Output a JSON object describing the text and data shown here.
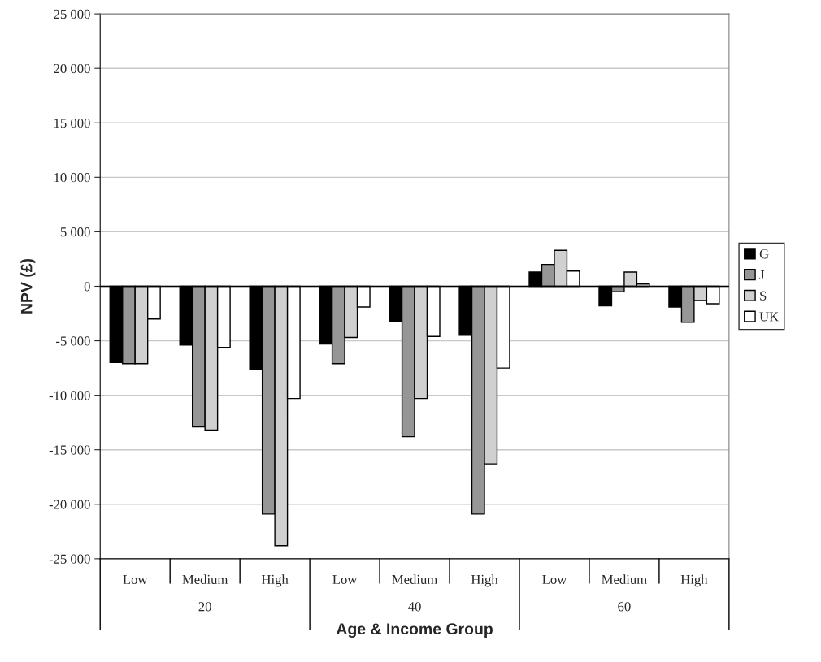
{
  "chart_data": {
    "type": "bar",
    "xlabel": "Age & Income Group",
    "ylabel": "NPV (£)",
    "categories": [
      "Low",
      "Medium",
      "High",
      "Low",
      "Medium",
      "High",
      "Low",
      "Medium",
      "High"
    ],
    "annotations": [
      "20",
      "40",
      "60"
    ],
    "series": [
      {
        "name": "G",
        "color": "#000000",
        "values": [
          -7000,
          -5400,
          -7600,
          -5300,
          -3200,
          -4500,
          1300,
          -1800,
          -1900
        ]
      },
      {
        "name": "J",
        "color": "#969696",
        "values": [
          -7100,
          -12900,
          -20900,
          -7100,
          -13800,
          -20900,
          2000,
          -500,
          -3300
        ]
      },
      {
        "name": "S",
        "color": "#d0d0d0",
        "values": [
          -7100,
          -13200,
          -23800,
          -4700,
          -10300,
          -16300,
          3300,
          1300,
          -1300
        ]
      },
      {
        "name": "UK",
        "color": "#ffffff",
        "values": [
          -3000,
          -5600,
          -10300,
          -1900,
          -4600,
          -7500,
          1400,
          200,
          -1600
        ]
      }
    ],
    "ylim": [
      -25000,
      25000
    ],
    "yticks": [
      {
        "value": -25000,
        "label": "-25 000"
      },
      {
        "value": -20000,
        "label": "-20 000"
      },
      {
        "value": -15000,
        "label": "-15 000"
      },
      {
        "value": -10000,
        "label": "-10 000"
      },
      {
        "value": -5000,
        "label": "-5 000"
      },
      0,
      {
        "value": 5000,
        "label": "5 000"
      },
      {
        "value": 10000,
        "label": "10 000"
      },
      {
        "value": 15000,
        "label": "15 000"
      },
      {
        "value": 20000,
        "label": "20 000"
      },
      {
        "value": 25000,
        "label": "25 000"
      }
    ],
    "grid": "y",
    "legend": "right"
  }
}
